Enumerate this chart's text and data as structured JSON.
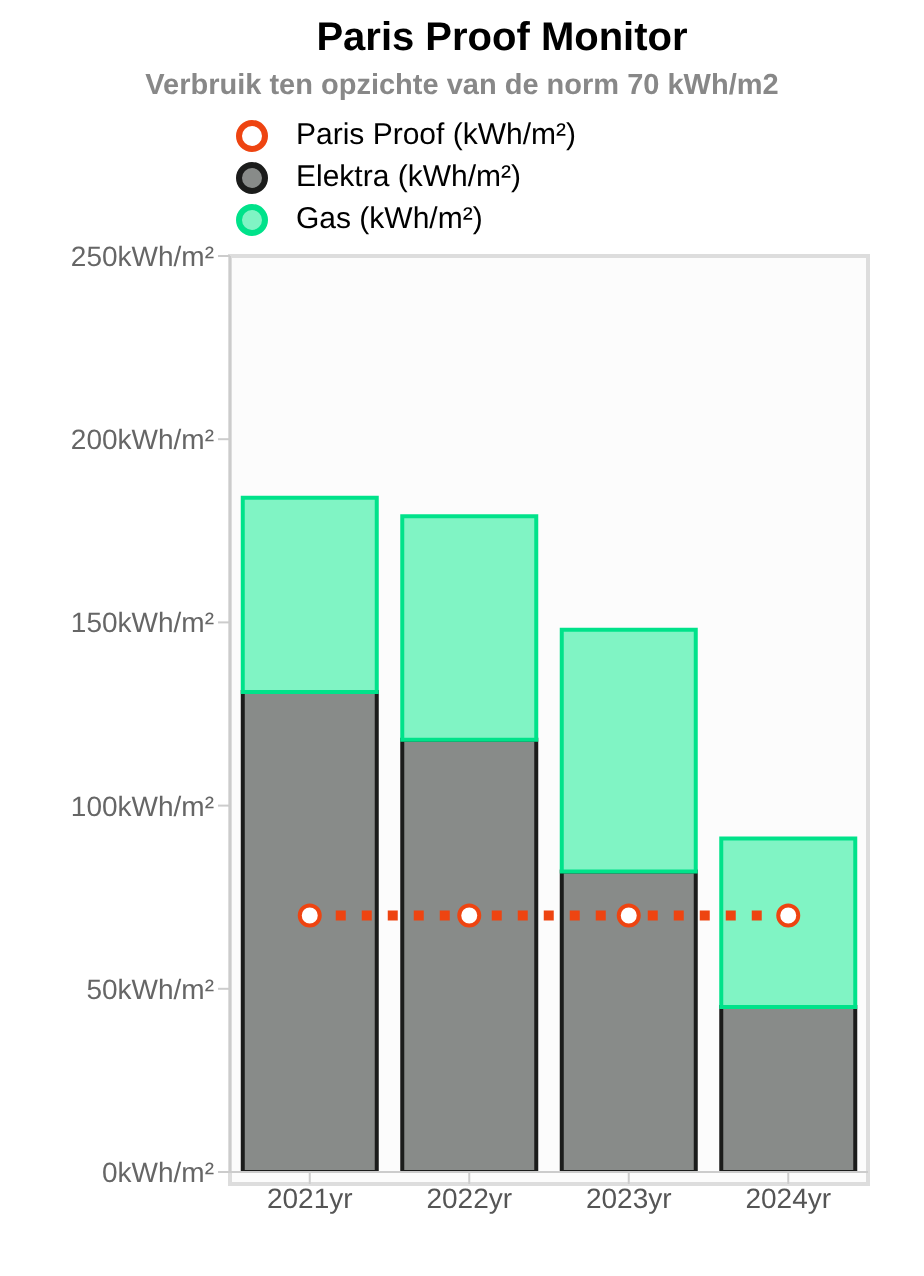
{
  "chart_data": {
    "type": "bar",
    "title": "Paris Proof Monitor",
    "subtitle": "Verbruik ten opzichte van de norm 70 kWh/m2",
    "categories": [
      "2021yr",
      "2022yr",
      "2023yr",
      "2024yr"
    ],
    "stacked": true,
    "legend": "top",
    "marker": "circle",
    "series": [
      {
        "name": "Paris Proof (kWh/m²)",
        "type": "line",
        "line_style": "dotted",
        "color": "#ee4411",
        "values": [
          70,
          70,
          70,
          70
        ]
      },
      {
        "name": "Elektra (kWh/m²)",
        "color": "#888b89",
        "values": [
          131,
          118,
          82,
          45
        ]
      },
      {
        "name": "Gas (kWh/m²)",
        "color": "#80f4c4",
        "values": [
          53,
          61,
          66,
          46
        ]
      }
    ],
    "ylim": [
      0,
      250
    ],
    "yticks": [
      {
        "value": 0,
        "label": "0kWh/m²"
      },
      {
        "value": 50,
        "label": "50kWh/m²"
      },
      {
        "value": 100,
        "label": "100kWh/m²"
      },
      {
        "value": 150,
        "label": "150kWh/m²"
      },
      {
        "value": 200,
        "label": "200kWh/m²"
      },
      {
        "value": 250,
        "label": "250kWh/m²"
      }
    ]
  }
}
